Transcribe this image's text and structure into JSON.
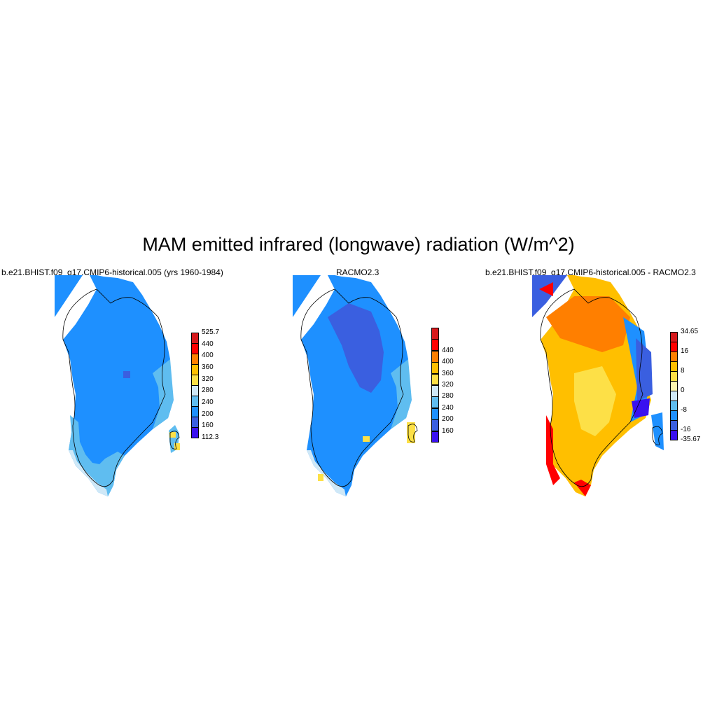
{
  "title": "MAM emitted infrared (longwave) radiation (W/m^2)",
  "panels": [
    {
      "id": "model",
      "title": "b.e21.BHIST.f09_g17.CMIP6-historical.005 (yrs 1960-1984)",
      "colorbar": {
        "labels": [
          "525.7",
          "440",
          "400",
          "360",
          "320",
          "280",
          "240",
          "200",
          "160",
          "112.3"
        ],
        "colors": [
          "#d7191c",
          "#ff0000",
          "#ff7f00",
          "#ffbf00",
          "#fde047",
          "#cfe8f7",
          "#5fbdf0",
          "#1e90ff",
          "#3a5fe0",
          "#3a10f0"
        ]
      }
    },
    {
      "id": "obs",
      "title": "RACMO2.3",
      "colorbar": {
        "labels": [
          "440",
          "400",
          "360",
          "320",
          "280",
          "240",
          "200",
          "160"
        ],
        "colors": [
          "#d7191c",
          "#ff0000",
          "#ff7f00",
          "#ffbf00",
          "#fde047",
          "#cfe8f7",
          "#5fbdf0",
          "#1e90ff",
          "#3a5fe0",
          "#3a10f0"
        ]
      }
    },
    {
      "id": "diff",
      "title": "b.e21.BHIST.f09_g17.CMIP6-historical.005 - RACMO2.3",
      "colorbar": {
        "labels": [
          "34.65",
          "16",
          "8",
          "0",
          "-8",
          "-16",
          "-35.67"
        ],
        "colors": [
          "#d7191c",
          "#ff0000",
          "#ff7f00",
          "#ffbf00",
          "#fde047",
          "#fdf6b0",
          "#cfe8f7",
          "#5fbdf0",
          "#1e90ff",
          "#3a5fe0",
          "#3a10f0"
        ]
      }
    }
  ]
}
